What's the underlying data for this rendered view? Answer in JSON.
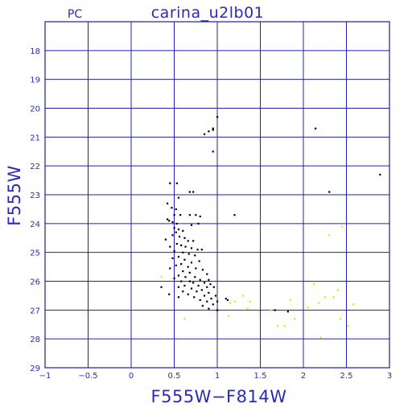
{
  "chart_data": {
    "type": "scatter",
    "title": "carina_u2lb01",
    "corner_label": "PC",
    "xlabel": "F555W−F814W",
    "ylabel": "F555W",
    "xlim": [
      -1,
      3
    ],
    "ylim": [
      29,
      17
    ],
    "y_inverted": true,
    "grid": true,
    "x_ticks": [
      -1,
      -0.5,
      0,
      0.5,
      1,
      1.5,
      2,
      2.5,
      3
    ],
    "x_tick_labels": [
      "−1",
      "−0.5",
      "0",
      "0.5",
      "1",
      "1.5",
      "2",
      "2.5",
      "3"
    ],
    "y_ticks": [
      18,
      19,
      20,
      21,
      22,
      23,
      24,
      25,
      26,
      27,
      28,
      29
    ],
    "y_tick_labels": [
      "18",
      "19",
      "20",
      "21",
      "22",
      "23",
      "24",
      "25",
      "26",
      "27",
      "28",
      "29"
    ],
    "colors": {
      "frame": "#1a1aa8",
      "grid": "#2020b4",
      "text": "#2a2ab8"
    },
    "series": [
      {
        "color": "#000000",
        "points": [
          [
            1.0,
            20.3
          ],
          [
            0.95,
            20.7
          ],
          [
            0.95,
            20.75
          ],
          [
            0.9,
            20.8
          ],
          [
            0.85,
            20.9
          ],
          [
            0.95,
            21.5
          ],
          [
            0.45,
            22.6
          ],
          [
            0.53,
            22.6
          ],
          [
            0.68,
            22.9
          ],
          [
            0.72,
            22.9
          ],
          [
            0.55,
            23.1
          ],
          [
            0.42,
            23.3
          ],
          [
            0.47,
            23.45
          ],
          [
            0.52,
            23.5
          ],
          [
            0.5,
            23.7
          ],
          [
            0.57,
            23.7
          ],
          [
            0.68,
            23.7
          ],
          [
            0.75,
            23.7
          ],
          [
            0.8,
            23.75
          ],
          [
            0.42,
            23.85
          ],
          [
            0.44,
            23.9
          ],
          [
            0.48,
            23.95
          ],
          [
            0.53,
            24.0
          ],
          [
            0.7,
            24.05
          ],
          [
            0.78,
            24.0
          ],
          [
            0.5,
            24.15
          ],
          [
            0.55,
            24.2
          ],
          [
            0.6,
            24.25
          ],
          [
            0.52,
            24.3
          ],
          [
            0.48,
            24.4
          ],
          [
            0.56,
            24.45
          ],
          [
            0.62,
            24.5
          ],
          [
            0.4,
            24.55
          ],
          [
            0.66,
            24.6
          ],
          [
            0.72,
            24.6
          ],
          [
            0.53,
            24.7
          ],
          [
            0.58,
            24.75
          ],
          [
            0.45,
            24.8
          ],
          [
            0.63,
            24.8
          ],
          [
            0.7,
            24.85
          ],
          [
            0.77,
            24.9
          ],
          [
            0.82,
            24.9
          ],
          [
            0.5,
            24.95
          ],
          [
            0.6,
            25.0
          ],
          [
            0.67,
            25.05
          ],
          [
            0.74,
            25.1
          ],
          [
            0.55,
            25.15
          ],
          [
            0.48,
            25.2
          ],
          [
            0.62,
            25.25
          ],
          [
            0.79,
            25.3
          ],
          [
            0.7,
            25.35
          ],
          [
            0.58,
            25.4
          ],
          [
            0.52,
            25.45
          ],
          [
            0.66,
            25.5
          ],
          [
            0.45,
            25.55
          ],
          [
            0.75,
            25.55
          ],
          [
            0.83,
            25.6
          ],
          [
            0.6,
            25.65
          ],
          [
            0.68,
            25.7
          ],
          [
            0.88,
            25.75
          ],
          [
            0.55,
            25.8
          ],
          [
            0.63,
            25.85
          ],
          [
            0.74,
            25.85
          ],
          [
            0.5,
            25.9
          ],
          [
            0.8,
            25.95
          ],
          [
            0.9,
            25.95
          ],
          [
            0.58,
            26.0
          ],
          [
            0.68,
            26.0
          ],
          [
            0.72,
            26.05
          ],
          [
            0.85,
            26.05
          ],
          [
            0.92,
            26.1
          ],
          [
            0.62,
            26.15
          ],
          [
            0.78,
            26.15
          ],
          [
            0.35,
            26.2
          ],
          [
            0.55,
            26.2
          ],
          [
            0.88,
            26.2
          ],
          [
            0.96,
            26.2
          ],
          [
            0.7,
            26.25
          ],
          [
            0.82,
            26.3
          ],
          [
            0.6,
            26.35
          ],
          [
            0.76,
            26.35
          ],
          [
            0.9,
            26.4
          ],
          [
            0.44,
            26.45
          ],
          [
            0.66,
            26.45
          ],
          [
            0.85,
            26.5
          ],
          [
            0.98,
            26.5
          ],
          [
            0.55,
            26.55
          ],
          [
            0.73,
            26.55
          ],
          [
            0.93,
            26.6
          ],
          [
            0.8,
            26.65
          ],
          [
            0.88,
            26.7
          ],
          [
            1.0,
            26.7
          ],
          [
            1.1,
            26.6
          ],
          [
            0.95,
            26.8
          ],
          [
            0.83,
            26.85
          ],
          [
            0.9,
            26.95
          ],
          [
            1.0,
            27.0
          ],
          [
            1.12,
            26.65
          ],
          [
            1.2,
            23.7
          ],
          [
            1.67,
            27.0
          ],
          [
            1.82,
            27.05
          ],
          [
            2.14,
            20.7
          ],
          [
            2.3,
            22.9
          ],
          [
            2.89,
            22.3
          ]
        ]
      },
      {
        "color": "#f0e000",
        "points": [
          [
            0.35,
            25.85
          ],
          [
            0.62,
            27.3
          ],
          [
            1.15,
            26.75
          ],
          [
            1.2,
            26.7
          ],
          [
            1.13,
            27.2
          ],
          [
            1.3,
            26.5
          ],
          [
            1.38,
            26.7
          ],
          [
            1.35,
            26.95
          ],
          [
            1.62,
            27.0
          ],
          [
            1.7,
            27.55
          ],
          [
            1.78,
            27.55
          ],
          [
            1.85,
            26.65
          ],
          [
            1.9,
            27.3
          ],
          [
            2.05,
            26.9
          ],
          [
            2.12,
            26.1
          ],
          [
            2.18,
            26.75
          ],
          [
            2.25,
            26.55
          ],
          [
            2.3,
            24.4
          ],
          [
            2.35,
            26.55
          ],
          [
            2.4,
            26.3
          ],
          [
            2.43,
            27.3
          ],
          [
            2.45,
            24.1
          ],
          [
            2.52,
            27.55
          ],
          [
            2.58,
            26.8
          ],
          [
            2.2,
            27.95
          ]
        ]
      }
    ]
  }
}
